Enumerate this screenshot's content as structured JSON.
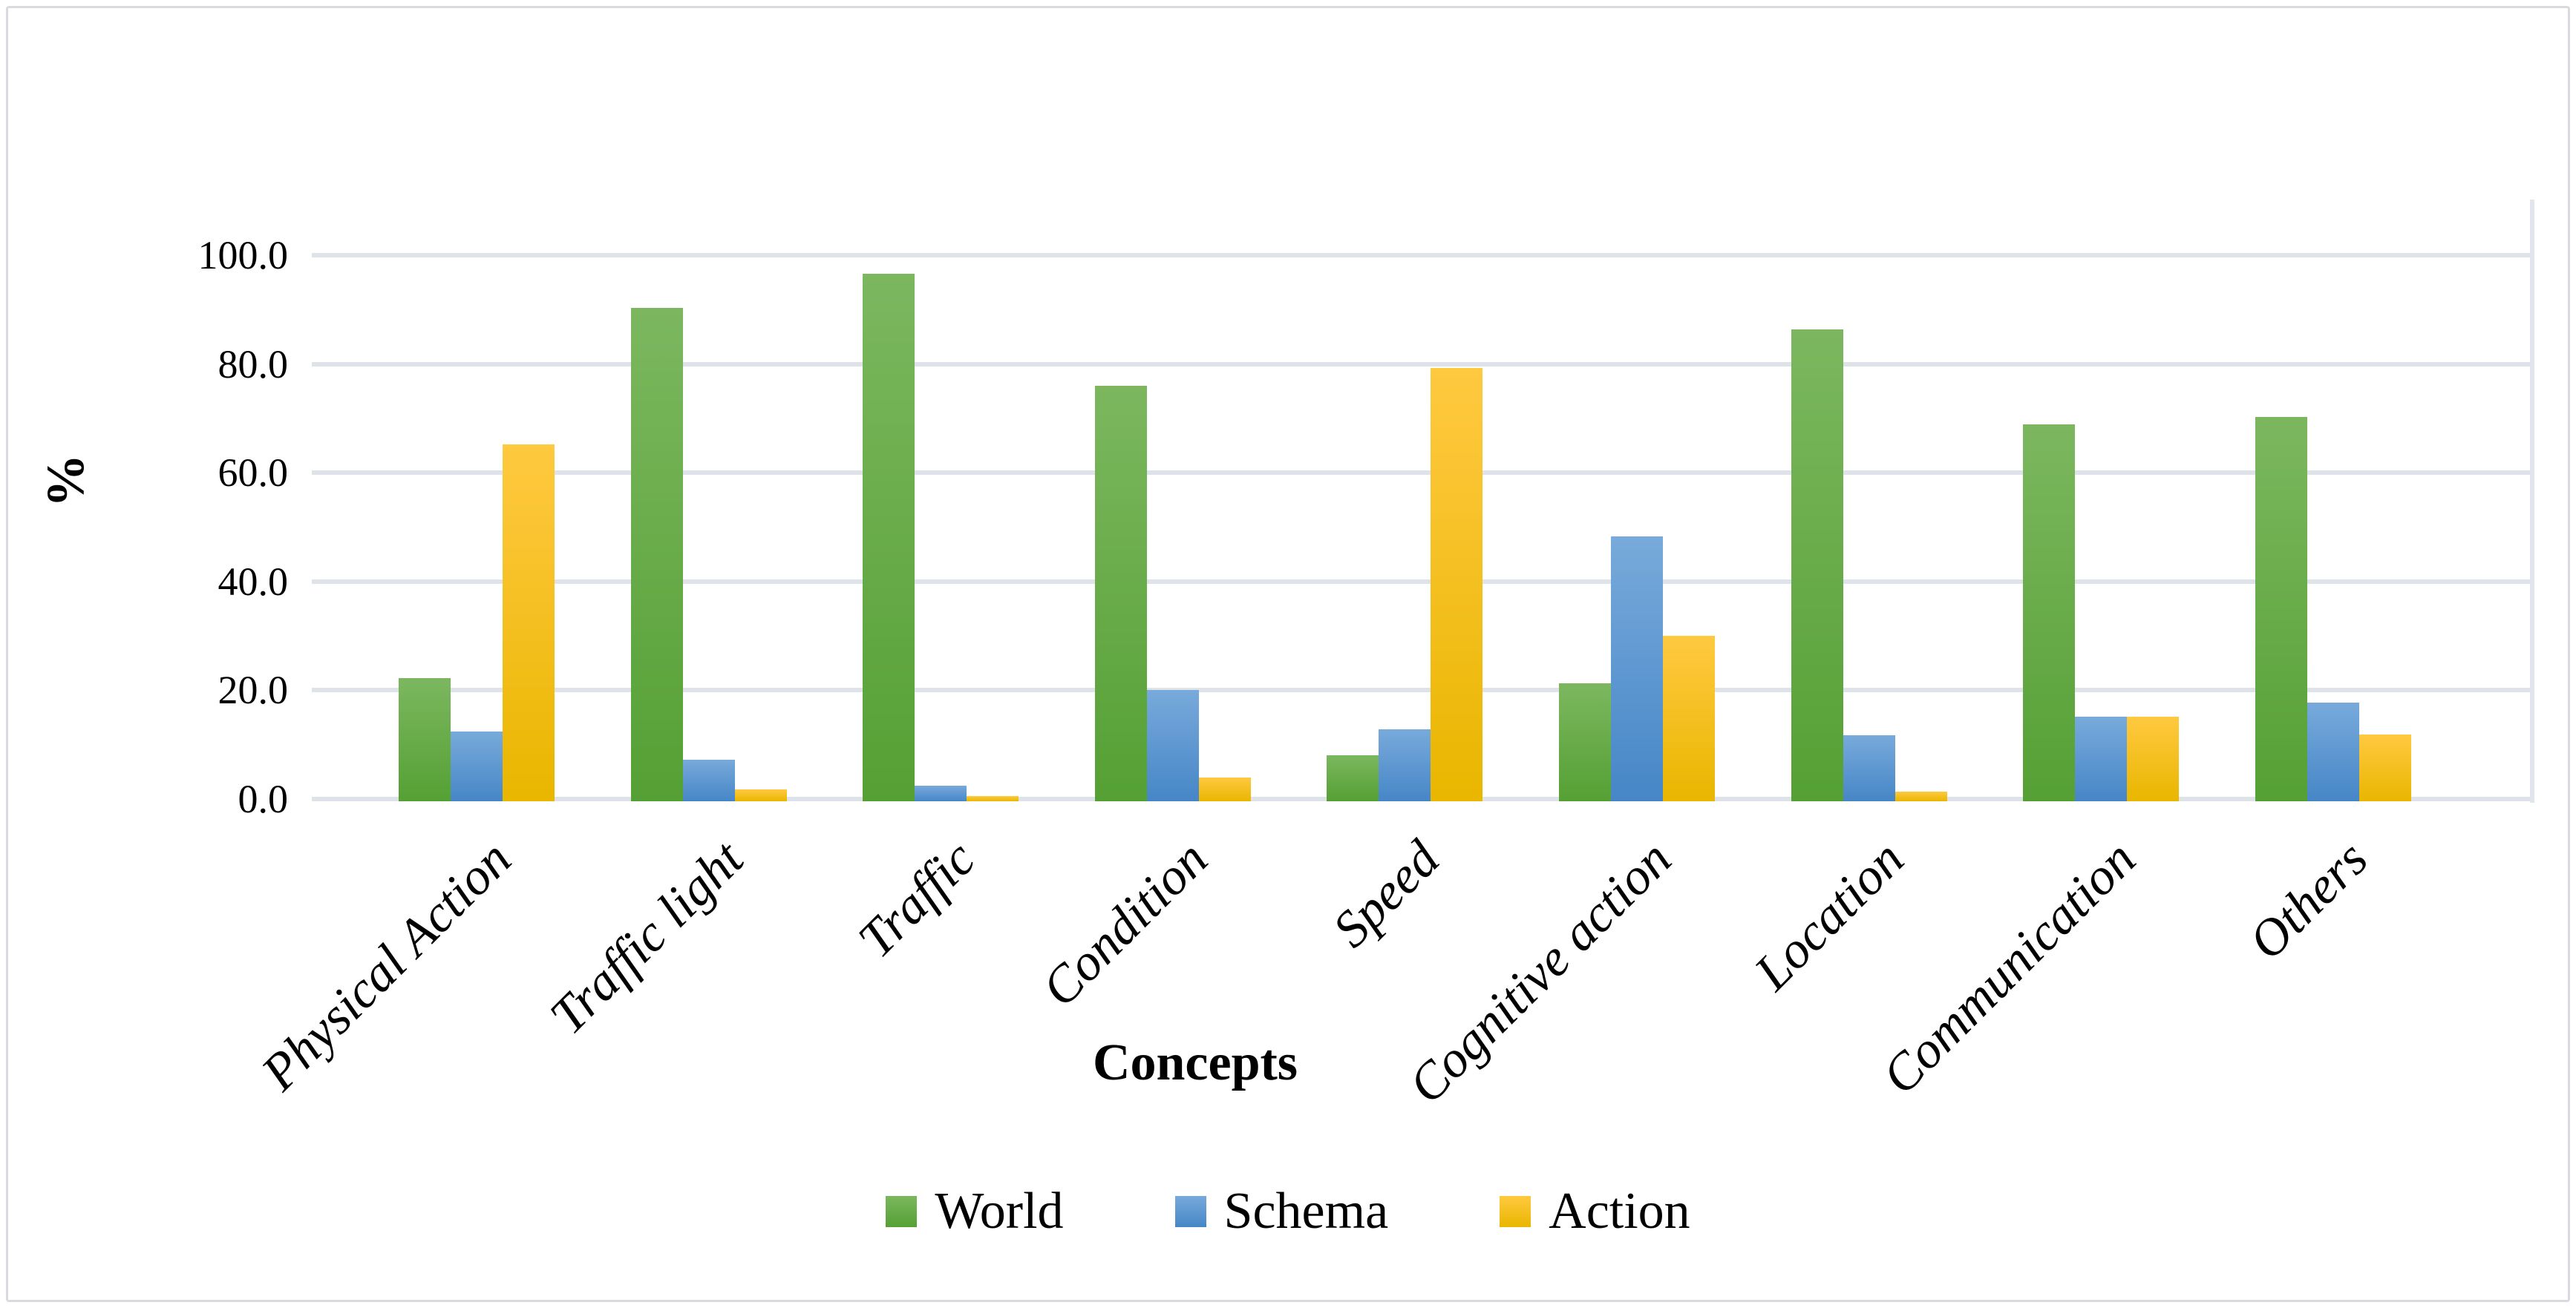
{
  "chart_data": {
    "type": "bar",
    "title": "",
    "categories": [
      "Physical Action",
      "Traffic light",
      "Traffic",
      "Condition",
      "Speed",
      "Cognitive action",
      "Location",
      "Communication",
      "Others"
    ],
    "series": [
      {
        "name": "World",
        "color": "#5AA039",
        "color_top": "#7CB75F",
        "color_bottom": "#55A034",
        "values": [
          22.2,
          90.4,
          96.6,
          76.0,
          8.0,
          21.3,
          86.4,
          69.0,
          70.3
        ]
      },
      {
        "name": "Schema",
        "color": "#4686C7",
        "color_top": "#78AADB",
        "color_bottom": "#4686C7",
        "values": [
          12.4,
          7.2,
          2.5,
          20.0,
          12.8,
          48.3,
          11.8,
          15.2,
          17.8
        ]
      },
      {
        "name": "Action",
        "color": "#E9B600",
        "color_top": "#FFC940",
        "color_bottom": "#E9B600",
        "values": [
          65.2,
          1.8,
          0.5,
          3.9,
          79.3,
          30.0,
          1.3,
          15.2,
          11.9
        ]
      }
    ],
    "xlabel": "Concepts",
    "ylabel": "%",
    "ylim": [
      0,
      100
    ],
    "yticks": [
      "0.0",
      "20.0",
      "40.0",
      "60.0",
      "80.0",
      "100.0"
    ],
    "grid": true,
    "gridline_color": "#DEE3EA",
    "legend": {
      "position": "bottom",
      "entries": [
        "World",
        "Schema",
        "Action"
      ]
    }
  }
}
